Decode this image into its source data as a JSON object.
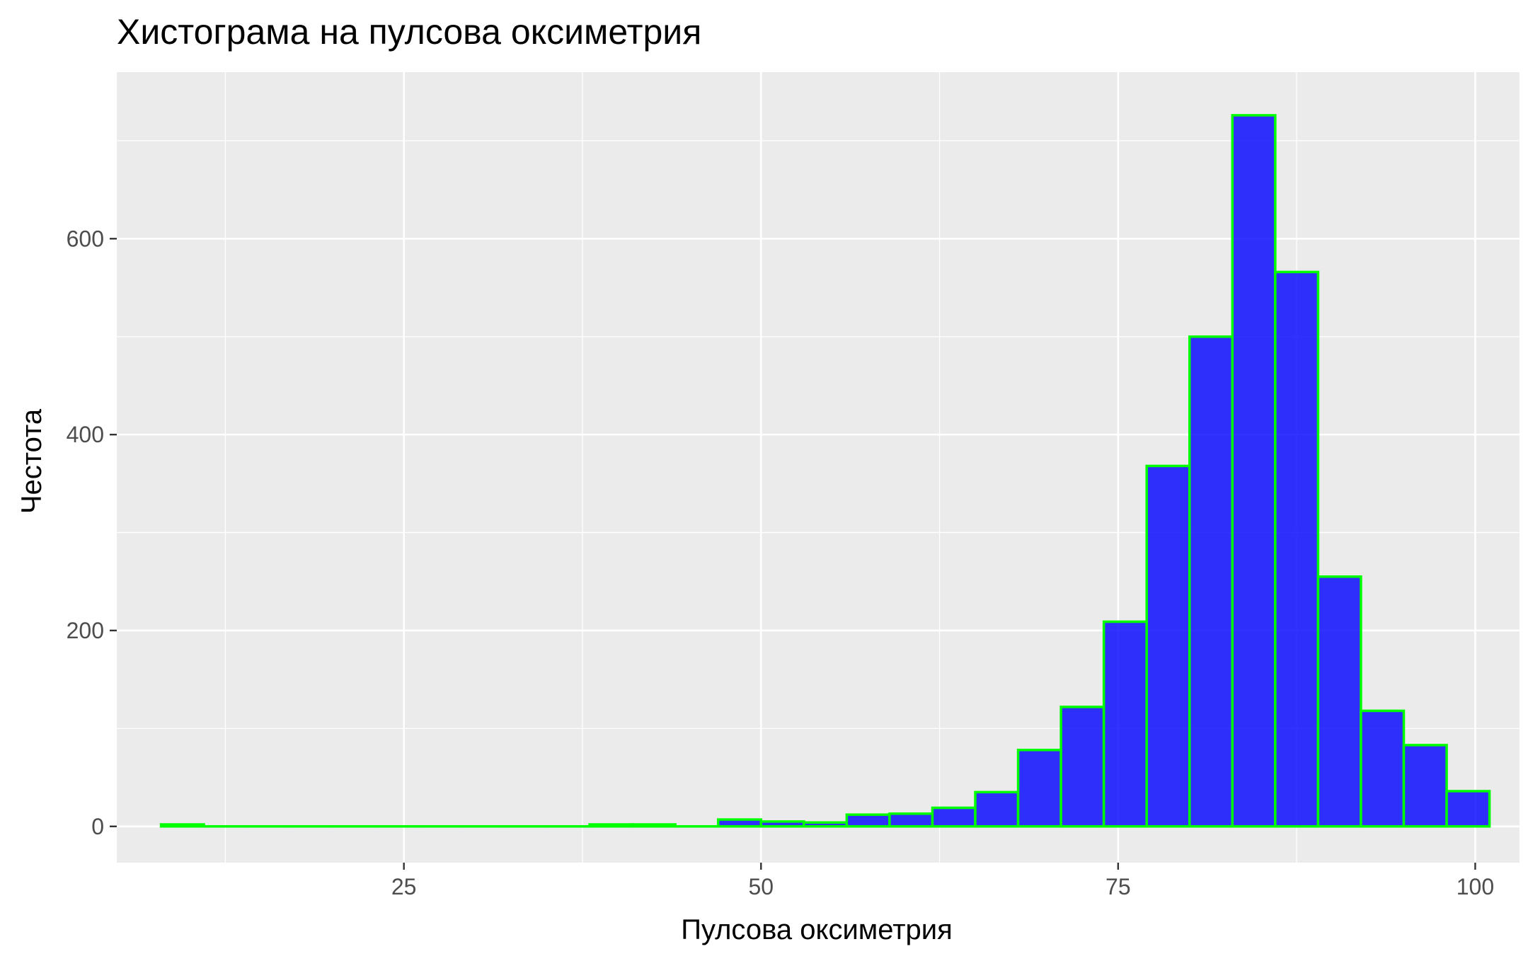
{
  "chart_data": {
    "type": "bar",
    "title": "Хистограма на пулсова оксиметрия",
    "xlabel": "Пулсова оксиметрия",
    "ylabel": "Честота",
    "xlim": [
      4.9,
      103.1
    ],
    "ylim": [
      -37,
      770
    ],
    "x_ticks": [
      25,
      50,
      75,
      100
    ],
    "x_minor": [
      12.5,
      37.5,
      62.5,
      87.5
    ],
    "y_ticks": [
      0,
      200,
      400,
      600
    ],
    "y_minor": [
      100,
      300,
      500,
      700
    ],
    "bin_width": 3,
    "bins": [
      {
        "x": 9.5,
        "count": 2
      },
      {
        "x": 12.5,
        "count": 0
      },
      {
        "x": 15.5,
        "count": 0
      },
      {
        "x": 18.5,
        "count": 0
      },
      {
        "x": 21.5,
        "count": 0
      },
      {
        "x": 24.5,
        "count": 0
      },
      {
        "x": 27.5,
        "count": 0
      },
      {
        "x": 30.5,
        "count": 0
      },
      {
        "x": 33.5,
        "count": 0
      },
      {
        "x": 36.5,
        "count": 0
      },
      {
        "x": 39.5,
        "count": 2
      },
      {
        "x": 42.5,
        "count": 2
      },
      {
        "x": 45.5,
        "count": 0
      },
      {
        "x": 48.5,
        "count": 7
      },
      {
        "x": 51.5,
        "count": 5
      },
      {
        "x": 54.5,
        "count": 4
      },
      {
        "x": 57.5,
        "count": 12
      },
      {
        "x": 60.5,
        "count": 13
      },
      {
        "x": 63.5,
        "count": 19
      },
      {
        "x": 66.5,
        "count": 35
      },
      {
        "x": 69.5,
        "count": 78
      },
      {
        "x": 72.5,
        "count": 122
      },
      {
        "x": 75.5,
        "count": 209
      },
      {
        "x": 78.5,
        "count": 368
      },
      {
        "x": 81.5,
        "count": 500
      },
      {
        "x": 84.5,
        "count": 726
      },
      {
        "x": 87.5,
        "count": 566
      },
      {
        "x": 90.5,
        "count": 255
      },
      {
        "x": 93.5,
        "count": 118
      },
      {
        "x": 96.5,
        "count": 83
      },
      {
        "x": 99.5,
        "count": 36
      }
    ],
    "colors": {
      "fill": "#0000ff",
      "outline": "#00ff00",
      "panel": "#ebebeb",
      "grid": "#ffffff"
    },
    "grid": true,
    "legend": "none"
  }
}
